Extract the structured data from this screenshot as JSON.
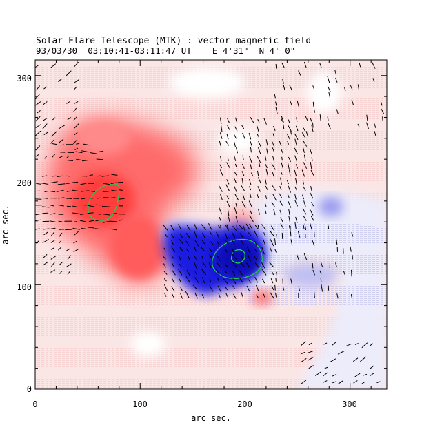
{
  "header": {
    "title": "Solar Flare Telescope (MTK) : vector magnetic field",
    "subtitle": "93/03/30  03:10:41-03:11:47 UT    E 4'31\"  N 4' 0\""
  },
  "axes": {
    "xlabel": "arc sec.",
    "ylabel": "arc sec.",
    "xlim": [
      0,
      335
    ],
    "ylim": [
      0,
      315
    ],
    "xticks": [
      "0",
      "100",
      "200",
      "300"
    ],
    "yticks": [
      "0",
      "100",
      "200",
      "300"
    ]
  },
  "colors": {
    "positive_polarity": "#ff3c3c",
    "negative_polarity": "#2a2ae6",
    "contour": "#22cc55",
    "vectors": "#000000"
  },
  "chart_data": {
    "type": "heatmap",
    "title": "Solar Flare Telescope (MTK) : vector magnetic field",
    "xlabel": "arc sec.",
    "ylabel": "arc sec.",
    "xlim": [
      0,
      335
    ],
    "ylim": [
      0,
      315
    ],
    "regions": [
      {
        "polarity": "positive",
        "center": [
          70,
          180
        ],
        "peak": true
      },
      {
        "polarity": "positive",
        "center": [
          110,
          130
        ],
        "peak": false
      },
      {
        "polarity": "negative",
        "center": [
          195,
          125
        ],
        "peak": true
      },
      {
        "polarity": "negative",
        "center": [
          285,
          175
        ],
        "peak": false
      }
    ],
    "contours": [
      {
        "polarity": "positive",
        "center": [
          65,
          180
        ]
      },
      {
        "polarity": "negative",
        "center": [
          190,
          128
        ]
      },
      {
        "polarity": "negative",
        "center": [
          197,
          128
        ]
      }
    ]
  }
}
